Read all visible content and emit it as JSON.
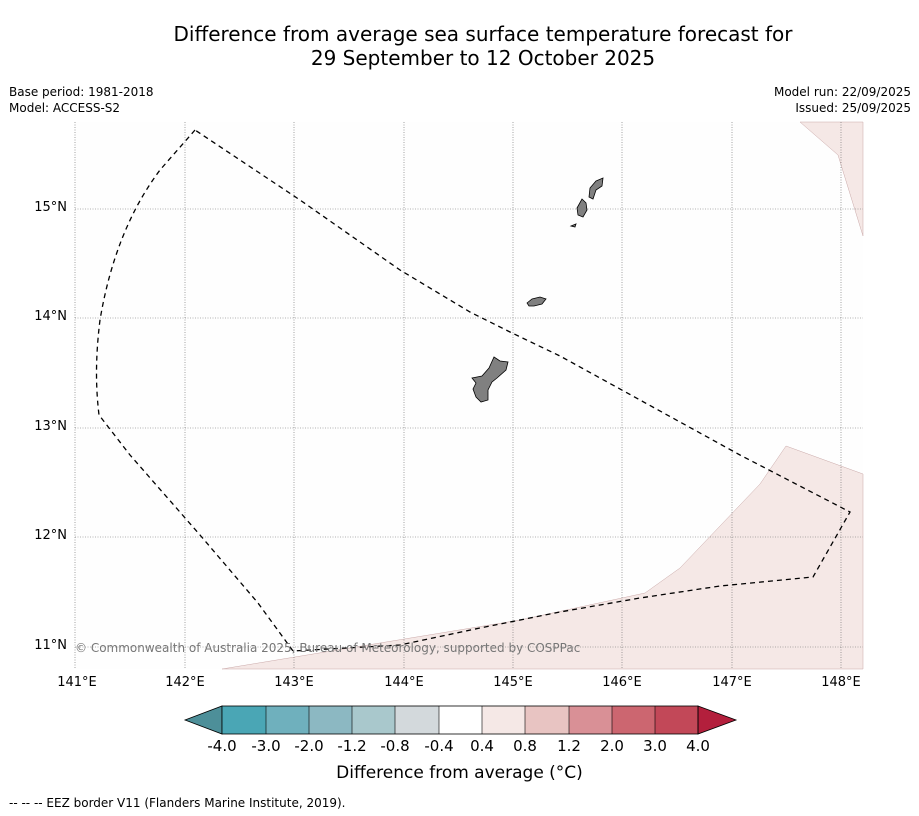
{
  "header": {
    "title_line1": "Difference from average sea surface temperature forecast for",
    "title_line2": "29 September to 12 October 2025",
    "base_period": "Base period: 1981-2018",
    "model": "Model: ACCESS-S2",
    "model_run": "Model run: 22/09/2025",
    "issued": "Issued: 25/09/2025"
  },
  "map": {
    "lat_labels": [
      "15°N",
      "14°N",
      "13°N",
      "12°N",
      "11°N"
    ],
    "lon_labels": [
      "141°E",
      "142°E",
      "143°E",
      "144°E",
      "145°E",
      "146°E",
      "147°E",
      "148°E"
    ],
    "copyright": "© Commonwealth of Australia 2025, Bureau of Meteorology, supported by COSPPac",
    "land_color": "#808080",
    "anomaly_fill_color": "#f5e8e6",
    "features": [
      "guam-island",
      "rota-island",
      "tinian-saipan-islands",
      "eez-border"
    ]
  },
  "colorbar": {
    "tick_labels": [
      "-4.0",
      "-3.0",
      "-2.0",
      "-1.2",
      "-0.8",
      "-0.4",
      "0.4",
      "0.8",
      "1.2",
      "2.0",
      "3.0",
      "4.0"
    ],
    "colors": [
      "#4d8f99",
      "#4aa6b5",
      "#6fb0bd",
      "#8cb8c2",
      "#a9c8cc",
      "#d3d9dc",
      "#ffffff",
      "#f5e8e6",
      "#e8c4c2",
      "#d99096",
      "#cc6670",
      "#c24858",
      "#b31f3c"
    ],
    "label": "Difference from average (°C)"
  },
  "footer": {
    "legend_text": "--  --  -- EEZ border V11 (Flanders Marine Institute, 2019)."
  }
}
